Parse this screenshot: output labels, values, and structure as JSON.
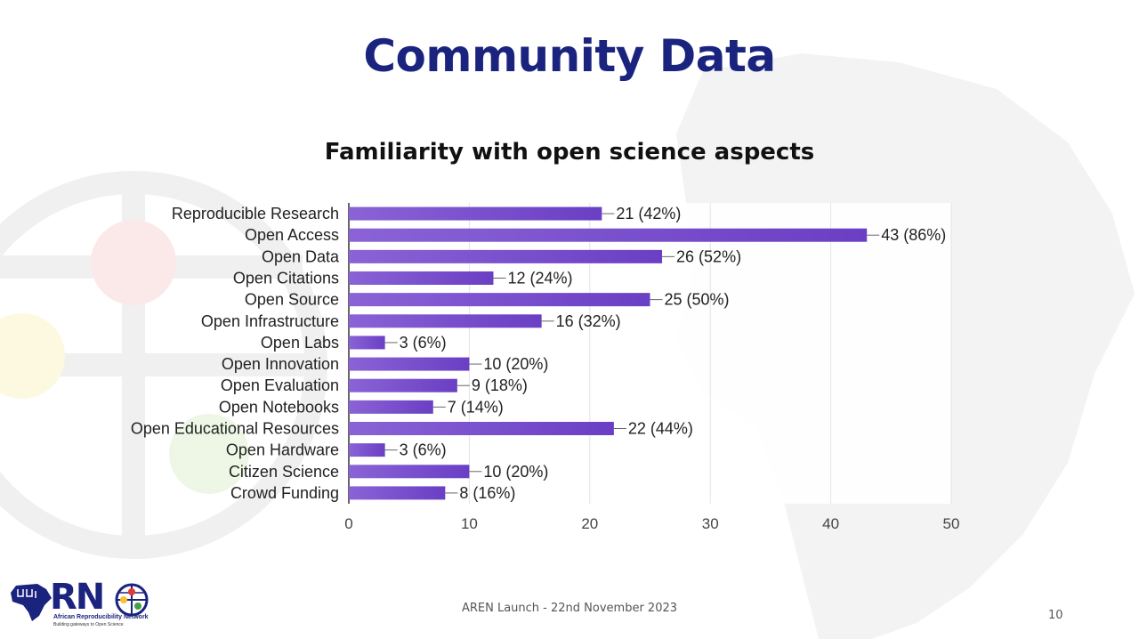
{
  "slide": {
    "title": "Community Data",
    "footer": "AREN Launch - 22nd November 2023",
    "page_number": "10"
  },
  "logo": {
    "letters": "RN",
    "name": "African Reproducibility Network",
    "tagline": "Building gateways to Open Science"
  },
  "colors": {
    "title": "#1a237e",
    "bar": "#6a3fc4",
    "bar_light": "#8a63d6",
    "axis_text": "#444444",
    "grid": "#e3e3e3"
  },
  "chart_data": {
    "type": "bar",
    "orientation": "horizontal",
    "title": "Familiarity with open science aspects",
    "xlabel": "",
    "ylabel": "",
    "xlim": [
      0,
      50
    ],
    "xticks": [
      0,
      10,
      20,
      30,
      40,
      50
    ],
    "grid": true,
    "categories": [
      "Reproducible Research",
      "Open Access",
      "Open Data",
      "Open Citations",
      "Open Source",
      "Open Infrastructure",
      "Open Labs",
      "Open Innovation",
      "Open Evaluation",
      "Open Notebooks",
      "Open Educational Resources",
      "Open Hardware",
      "Citizen Science",
      "Crowd Funding"
    ],
    "values": [
      21,
      43,
      26,
      12,
      25,
      16,
      3,
      10,
      9,
      7,
      22,
      3,
      10,
      8
    ],
    "data_labels": [
      "21 (42%)",
      "43 (86%)",
      "26 (52%)",
      "12 (24%)",
      "25 (50%)",
      "16 (32%)",
      "3 (6%)",
      "10 (20%)",
      "9 (18%)",
      "7 (14%)",
      "22 (44%)",
      "3 (6%)",
      "10 (20%)",
      "8 (16%)"
    ]
  }
}
